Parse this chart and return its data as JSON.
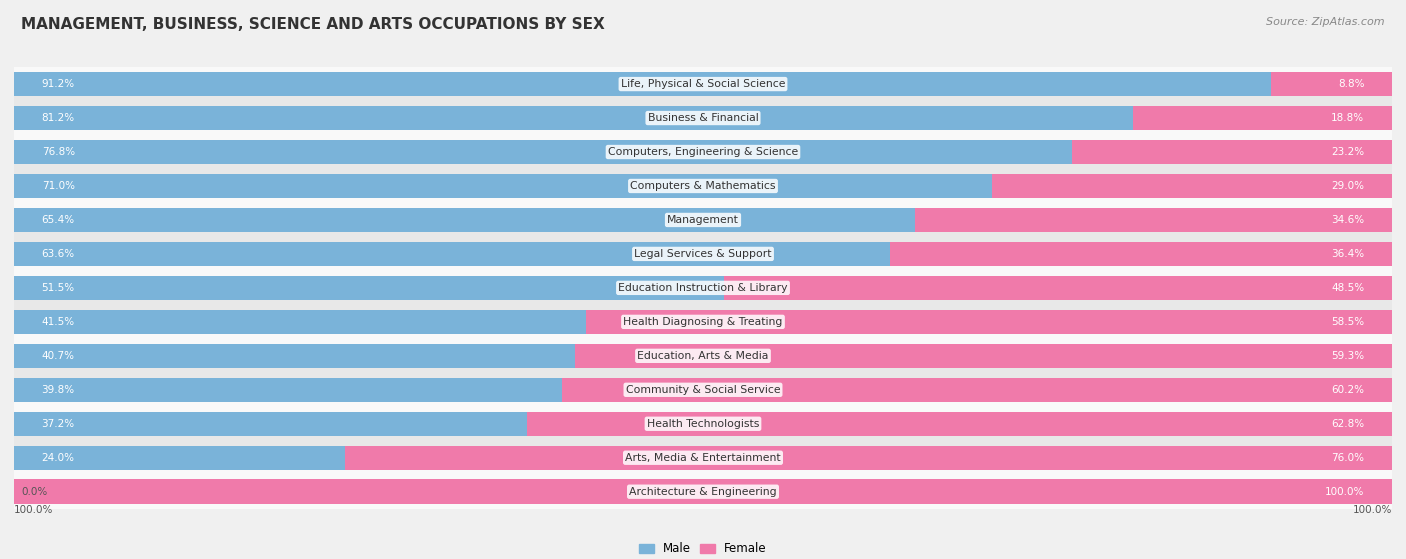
{
  "title": "MANAGEMENT, BUSINESS, SCIENCE AND ARTS OCCUPATIONS BY SEX",
  "source": "Source: ZipAtlas.com",
  "categories": [
    "Life, Physical & Social Science",
    "Business & Financial",
    "Computers, Engineering & Science",
    "Computers & Mathematics",
    "Management",
    "Legal Services & Support",
    "Education Instruction & Library",
    "Health Diagnosing & Treating",
    "Education, Arts & Media",
    "Community & Social Service",
    "Health Technologists",
    "Arts, Media & Entertainment",
    "Architecture & Engineering"
  ],
  "male": [
    91.2,
    81.2,
    76.8,
    71.0,
    65.4,
    63.6,
    51.5,
    41.5,
    40.7,
    39.8,
    37.2,
    24.0,
    0.0
  ],
  "female": [
    8.8,
    18.8,
    23.2,
    29.0,
    34.6,
    36.4,
    48.5,
    58.5,
    59.3,
    60.2,
    62.8,
    76.0,
    100.0
  ],
  "male_color": "#7ab3d9",
  "female_color": "#f07aaa",
  "bg_color": "#f0f0f0",
  "row_bg_light": "#f9f9f9",
  "row_bg_dark": "#e8e8e8",
  "title_fontsize": 11,
  "source_fontsize": 8,
  "cat_label_fontsize": 7.8,
  "bar_label_fontsize": 7.5,
  "legend_fontsize": 8.5
}
